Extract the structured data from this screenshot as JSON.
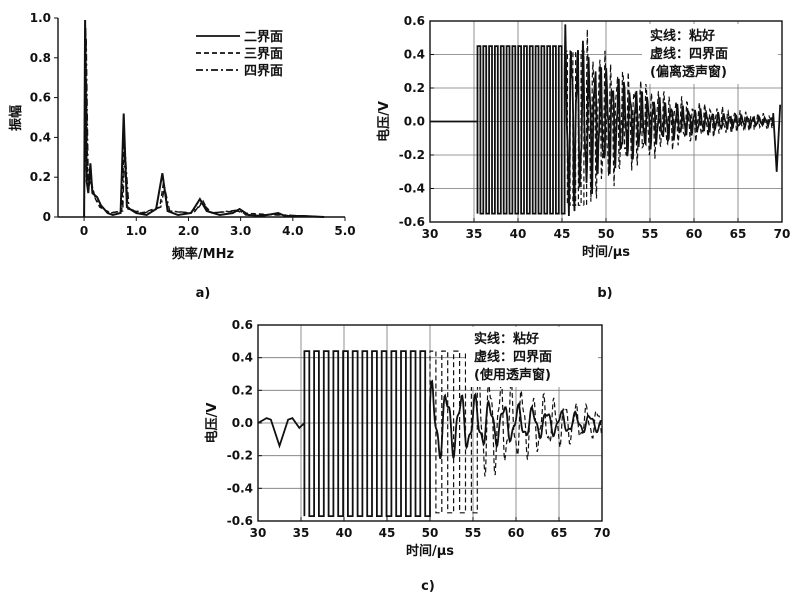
{
  "chart_data": [
    {
      "panel": "a)",
      "type": "line",
      "xlabel": "频率/MHz",
      "ylabel": "振幅",
      "xlim": [
        -0.5,
        5.0
      ],
      "ylim": [
        0,
        1.0
      ],
      "x_ticks": [
        "0",
        "1.0",
        "2.0",
        "3.0",
        "4.0",
        "5.0"
      ],
      "y_ticks": [
        "0",
        "0.2",
        "0.4",
        "0.6",
        "0.8",
        "1.0"
      ],
      "grid": false,
      "legend_position": "top-right",
      "series": [
        {
          "name": "二界面",
          "style": "solid",
          "points": [
            [
              0,
              0
            ],
            [
              0.02,
              0.99
            ],
            [
              0.05,
              0.18
            ],
            [
              0.08,
              0.12
            ],
            [
              0.12,
              0.27
            ],
            [
              0.16,
              0.12
            ],
            [
              0.25,
              0.1
            ],
            [
              0.32,
              0.06
            ],
            [
              0.45,
              0.02
            ],
            [
              0.55,
              0.01
            ],
            [
              0.7,
              0.02
            ],
            [
              0.76,
              0.52
            ],
            [
              0.82,
              0.05
            ],
            [
              1.0,
              0.02
            ],
            [
              1.2,
              0.01
            ],
            [
              1.38,
              0.04
            ],
            [
              1.5,
              0.22
            ],
            [
              1.6,
              0.03
            ],
            [
              1.8,
              0.01
            ],
            [
              2.05,
              0.02
            ],
            [
              2.22,
              0.09
            ],
            [
              2.35,
              0.03
            ],
            [
              2.6,
              0.01
            ],
            [
              2.85,
              0.02
            ],
            [
              2.98,
              0.04
            ],
            [
              3.15,
              0.01
            ],
            [
              3.4,
              0.005
            ],
            [
              3.72,
              0.02
            ],
            [
              3.85,
              0.005
            ],
            [
              4.2,
              0.005
            ],
            [
              4.6,
              0.0
            ]
          ]
        },
        {
          "name": "三界面",
          "style": "dashed",
          "points": [
            [
              0,
              0
            ],
            [
              0.03,
              0.95
            ],
            [
              0.07,
              0.16
            ],
            [
              0.12,
              0.2
            ],
            [
              0.2,
              0.1
            ],
            [
              0.3,
              0.05
            ],
            [
              0.5,
              0.02
            ],
            [
              0.72,
              0.03
            ],
            [
              0.77,
              0.4
            ],
            [
              0.84,
              0.04
            ],
            [
              1.1,
              0.02
            ],
            [
              1.45,
              0.05
            ],
            [
              1.52,
              0.17
            ],
            [
              1.62,
              0.03
            ],
            [
              2.0,
              0.02
            ],
            [
              2.2,
              0.05
            ],
            [
              2.28,
              0.08
            ],
            [
              2.4,
              0.02
            ],
            [
              2.95,
              0.03
            ],
            [
              3.02,
              0.02
            ],
            [
              3.7,
              0.01
            ],
            [
              4.6,
              0.0
            ]
          ]
        },
        {
          "name": "四界面",
          "style": "dashdot",
          "points": [
            [
              0,
              0
            ],
            [
              0.04,
              0.9
            ],
            [
              0.08,
              0.15
            ],
            [
              0.13,
              0.18
            ],
            [
              0.22,
              0.09
            ],
            [
              0.33,
              0.05
            ],
            [
              0.5,
              0.02
            ],
            [
              0.74,
              0.03
            ],
            [
              0.78,
              0.35
            ],
            [
              0.86,
              0.04
            ],
            [
              1.15,
              0.02
            ],
            [
              1.47,
              0.05
            ],
            [
              1.54,
              0.15
            ],
            [
              1.64,
              0.03
            ],
            [
              2.1,
              0.02
            ],
            [
              2.24,
              0.07
            ],
            [
              2.3,
              0.06
            ],
            [
              2.45,
              0.02
            ],
            [
              2.96,
              0.035
            ],
            [
              3.1,
              0.01
            ],
            [
              3.7,
              0.012
            ],
            [
              4.6,
              0.0
            ]
          ]
        }
      ]
    },
    {
      "panel": "b)",
      "type": "line",
      "xlabel": "时间/μs",
      "ylabel": "电压/V",
      "xlim": [
        30,
        70
      ],
      "ylim": [
        -0.6,
        0.6
      ],
      "x_ticks": [
        "30",
        "35",
        "40",
        "45",
        "50",
        "55",
        "60",
        "65",
        "70"
      ],
      "y_ticks": [
        "-0.6",
        "-0.4",
        "-0.2",
        "0.0",
        "0.2",
        "0.4",
        "0.6"
      ],
      "grid": true,
      "annotation": [
        "实线：粘好",
        "虚线：四界面",
        "(偏离透声窗)"
      ],
      "series": [
        {
          "name": "实线：粘好",
          "style": "solid",
          "burst": {
            "start": 35.4,
            "end": 45.3,
            "cycles": 15,
            "amp_high": 0.45,
            "amp_low": -0.55
          },
          "tail": {
            "start": 45.3,
            "end": 69.0,
            "freq": 1.5,
            "amp_start": 0.5,
            "decay": 0.14
          },
          "pre": {
            "start": 30,
            "end": 35.4,
            "value": 0.0
          },
          "end_spike": [
            [
              69.0,
              0.05
            ],
            [
              69.4,
              -0.3
            ],
            [
              69.8,
              0.1
            ]
          ]
        },
        {
          "name": "虚线：四界面",
          "style": "dashed",
          "burst": {
            "start": 45.3,
            "end": 47.8,
            "cycles": 4,
            "amp_high": 0.42,
            "amp_low": -0.5
          },
          "tail": {
            "start": 47.8,
            "end": 69.0,
            "freq": 1.5,
            "amp_start": 0.42,
            "decay": 0.12
          }
        }
      ]
    },
    {
      "panel": "c)",
      "type": "line",
      "xlabel": "时间/μs",
      "ylabel": "电压/V",
      "xlim": [
        30,
        70
      ],
      "ylim": [
        -0.6,
        0.6
      ],
      "x_ticks": [
        "30",
        "35",
        "40",
        "45",
        "50",
        "55",
        "60",
        "65",
        "70"
      ],
      "y_ticks": [
        "-0.6",
        "-0.4",
        "-0.2",
        "0.0",
        "0.2",
        "0.4",
        "0.6"
      ],
      "grid": true,
      "annotation": [
        "实线：粘好",
        "虚线：四界面",
        "(使用透声窗)"
      ],
      "series": [
        {
          "name": "实线：粘好",
          "style": "solid",
          "burst": {
            "start": 35.4,
            "end": 50.0,
            "cycles": 13,
            "amp_high": 0.44,
            "amp_low": -0.57
          },
          "tail": {
            "start": 50.0,
            "end": 70.0,
            "freq": 0.6,
            "amp_start": 0.2,
            "decay": 0.08
          },
          "pre_wave": [
            [
              30,
              0.0
            ],
            [
              31,
              0.03
            ],
            [
              31.5,
              0.02
            ],
            [
              32.5,
              -0.14
            ],
            [
              33.5,
              0.02
            ],
            [
              34,
              0.03
            ],
            [
              34.8,
              -0.03
            ],
            [
              35.4,
              0.0
            ]
          ]
        },
        {
          "name": "虚线：四界面",
          "style": "dashed",
          "burst": {
            "start": 50.0,
            "end": 55.5,
            "cycles": 4,
            "amp_high": 0.44,
            "amp_low": -0.55
          },
          "tail": {
            "start": 55.5,
            "end": 70.0,
            "freq": 0.8,
            "amp_start": 0.3,
            "decay": 0.1
          }
        }
      ]
    }
  ]
}
